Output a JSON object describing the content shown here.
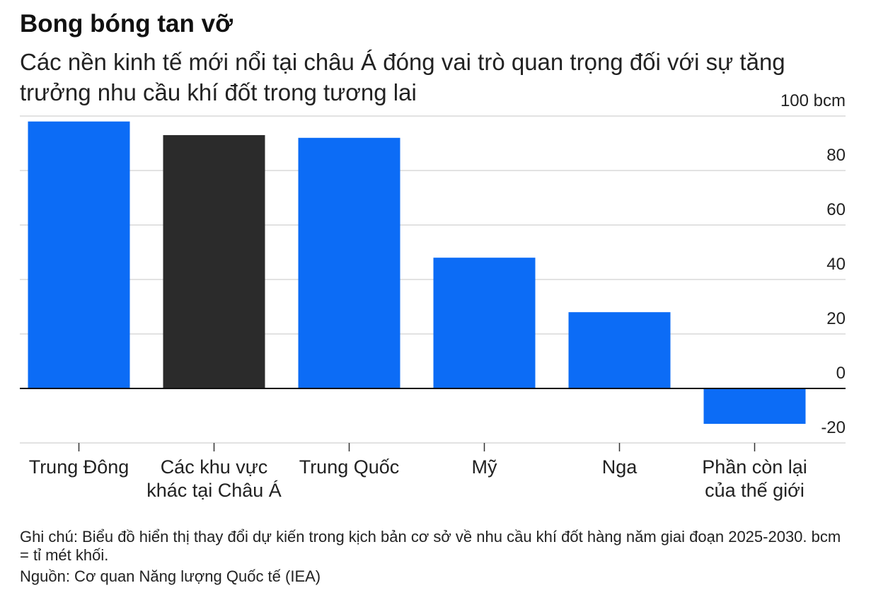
{
  "chart_data": {
    "type": "bar",
    "title": "Bong bóng tan vỡ",
    "subtitle": "Các nền kinh tế mới nổi tại châu Á đóng vai trò quan trọng đối với sự tăng trưởng nhu cầu khí đốt trong tương lai",
    "categories": [
      "Trung Đông",
      "Các khu vực\nkhác tại Châu Á",
      "Trung Quốc",
      "Mỹ",
      "Nga",
      "Phần còn lại\ncủa thế giới"
    ],
    "values": [
      98,
      93,
      92,
      48,
      28,
      -13
    ],
    "colors": [
      "#0c6cf6",
      "#2b2b2b",
      "#0c6cf6",
      "#0c6cf6",
      "#0c6cf6",
      "#0c6cf6"
    ],
    "ylim": [
      -20,
      100
    ],
    "yticks": [
      -20,
      0,
      20,
      40,
      60,
      80,
      {
        "value": 100,
        "label": "100 bcm"
      }
    ],
    "grid": true,
    "y_axis_side": "right",
    "note": "Ghi chú: Biểu đồ hiển thị thay đổi dự kiến trong kịch bản cơ sở về nhu cầu khí đốt hàng năm giai đoạn 2025-2030. bcm = tỉ mét khối.",
    "source": "Nguồn: Cơ quan Năng lượng Quốc tế (IEA)"
  }
}
